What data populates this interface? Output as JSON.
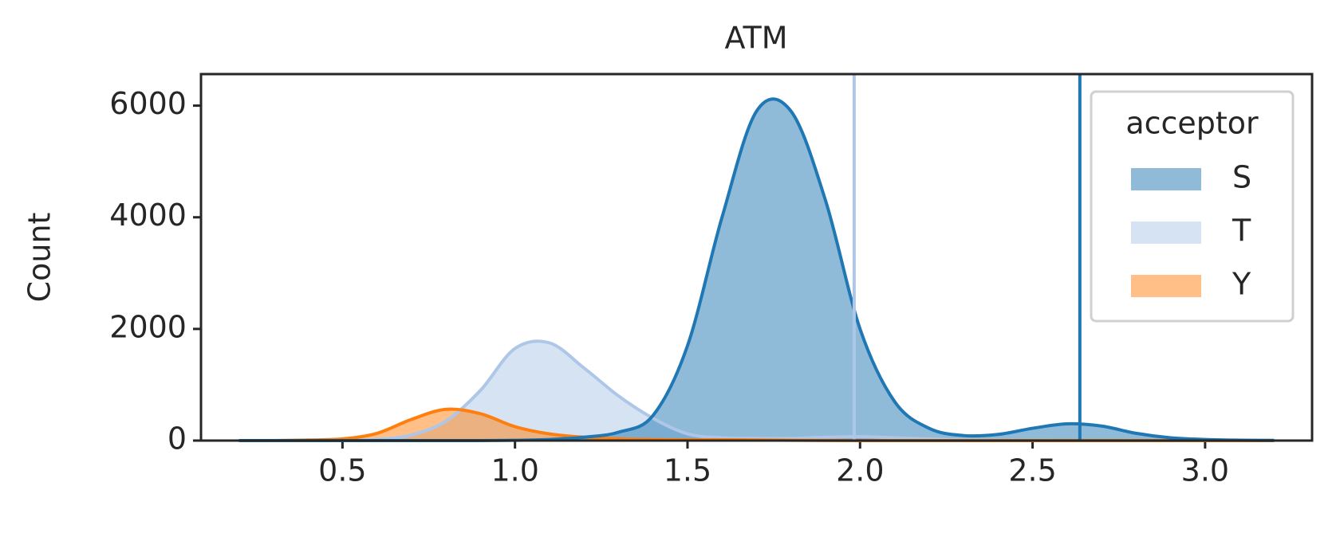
{
  "chart_data": {
    "type": "kde-area",
    "title": "ATM",
    "ylabel": "Count",
    "x": [
      0.2,
      0.3,
      0.4,
      0.5,
      0.6,
      0.7,
      0.8,
      0.9,
      1.0,
      1.1,
      1.2,
      1.3,
      1.4,
      1.5,
      1.6,
      1.7,
      1.8,
      1.9,
      2.0,
      2.1,
      2.2,
      2.3,
      2.4,
      2.5,
      2.6,
      2.7,
      2.8,
      2.9,
      3.0,
      3.1,
      3.2
    ],
    "series": [
      {
        "name": "S",
        "color": "#1f77b4",
        "vline": 2.637,
        "values": [
          0,
          0,
          0,
          0,
          0,
          0,
          0,
          0,
          5,
          20,
          60,
          150,
          450,
          1700,
          4000,
          5900,
          5900,
          4300,
          2000,
          700,
          220,
          90,
          110,
          220,
          300,
          260,
          130,
          50,
          20,
          8,
          3
        ]
      },
      {
        "name": "T",
        "color": "#aec7e8",
        "vline": 1.983,
        "values": [
          0,
          0,
          0,
          5,
          20,
          100,
          350,
          900,
          1650,
          1750,
          1300,
          800,
          400,
          120,
          50,
          40,
          40,
          60,
          70,
          50,
          30,
          10,
          5,
          2,
          0,
          0,
          0,
          0,
          0,
          0,
          0
        ]
      },
      {
        "name": "Y",
        "color": "#ff7f0e",
        "values": [
          0,
          0,
          10,
          30,
          130,
          380,
          560,
          480,
          250,
          120,
          60,
          30,
          20,
          15,
          15,
          10,
          5,
          2,
          0,
          0,
          0,
          0,
          0,
          0,
          0,
          0,
          0,
          0,
          0,
          0,
          0
        ]
      }
    ],
    "legend_title": "acceptor",
    "legend": "upper right",
    "xlim": [
      0.09,
      3.31
    ],
    "xticks": [
      0.5,
      {
        "value": 1.0,
        "label": "1.0"
      },
      1.5,
      {
        "value": 2.0,
        "label": "2.0"
      },
      2.5,
      {
        "value": 3.0,
        "label": "3.0"
      }
    ],
    "ylim": [
      0,
      6565
    ],
    "yticks": [
      0,
      2000,
      4000,
      6000
    ]
  }
}
